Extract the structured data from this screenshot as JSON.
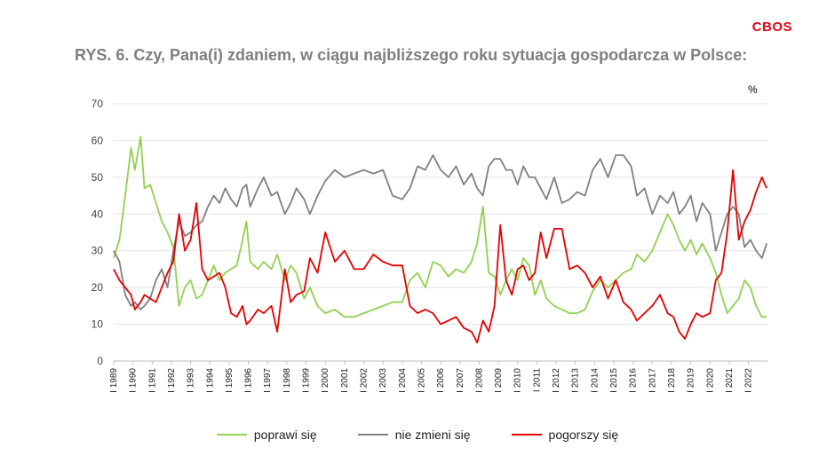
{
  "brand": "CBOS",
  "title": "RYS. 6. Czy, Pana(i) zdaniem, w ciągu najbliższego roku sytuacja gospodarcza w Polsce:",
  "unit_label": "%",
  "chart_data": {
    "type": "line",
    "title": "RYS. 6. Czy, Pana(i) zdaniem, w ciągu najbliższego roku sytuacja gospodarcza w Polsce:",
    "xlabel": "",
    "ylabel": "%",
    "ylim": [
      0,
      70
    ],
    "yticks": [
      0,
      10,
      20,
      30,
      40,
      50,
      60,
      70
    ],
    "xlim": [
      1989.0,
      2022.99
    ],
    "x_tick_labels": [
      "I 1989",
      "I 1990",
      "I 1991",
      "I 1992",
      "I 1993",
      "I 1994",
      "I 1995",
      "I 1996",
      "I 1997",
      "I 1998",
      "I 1999",
      "I 2000",
      "I 2001",
      "I 2002",
      "I 2003",
      "I 2004",
      "I 2005",
      "I 2006",
      "I 2007",
      "I 2008",
      "I 2009",
      "I 2010",
      "I 2011",
      "I 2012",
      "I 2013",
      "I 2014",
      "I 2015",
      "I 2016",
      "I 2017",
      "I 2018",
      "I 2019",
      "I 2020",
      "I 2021",
      "I 2022"
    ],
    "grid": "horizontal",
    "legend_position": "bottom",
    "series": [
      {
        "name": "poprawi się",
        "color": "#92d050",
        "x": [
          1989.0,
          1989.3,
          1989.6,
          1989.9,
          1990.1,
          1990.4,
          1990.6,
          1990.9,
          1991.2,
          1991.5,
          1991.8,
          1992.1,
          1992.4,
          1992.7,
          1993.0,
          1993.3,
          1993.6,
          1993.9,
          1994.2,
          1994.5,
          1994.8,
          1995.1,
          1995.4,
          1995.7,
          1995.9,
          1996.1,
          1996.5,
          1996.8,
          1997.2,
          1997.5,
          1997.9,
          1998.2,
          1998.5,
          1998.9,
          1999.2,
          1999.6,
          2000.0,
          2000.5,
          2001.0,
          2001.5,
          2002.0,
          2002.5,
          2003.0,
          2003.5,
          2004.0,
          2004.4,
          2004.8,
          2005.2,
          2005.6,
          2006.0,
          2006.4,
          2006.8,
          2007.2,
          2007.6,
          2007.9,
          2008.2,
          2008.5,
          2008.8,
          2009.1,
          2009.4,
          2009.7,
          2010.0,
          2010.3,
          2010.6,
          2010.9,
          2011.2,
          2011.5,
          2011.9,
          2012.3,
          2012.7,
          2013.1,
          2013.5,
          2013.9,
          2014.3,
          2014.7,
          2015.1,
          2015.5,
          2015.9,
          2016.2,
          2016.6,
          2017.0,
          2017.4,
          2017.8,
          2018.1,
          2018.4,
          2018.7,
          2019.0,
          2019.3,
          2019.6,
          2020.0,
          2020.3,
          2020.6,
          2020.9,
          2021.2,
          2021.5,
          2021.8,
          2022.1,
          2022.4,
          2022.7,
          2022.95
        ],
        "y": [
          28,
          33,
          45,
          58,
          52,
          61,
          47,
          48,
          43,
          38,
          35,
          31,
          15,
          20,
          22,
          17,
          18,
          22,
          26,
          22,
          24,
          25,
          26,
          33,
          38,
          27,
          25,
          27,
          25,
          29,
          22,
          26,
          24,
          17,
          20,
          15,
          13,
          14,
          12,
          12,
          13,
          14,
          15,
          16,
          16,
          22,
          24,
          20,
          27,
          26,
          23,
          25,
          24,
          27,
          32,
          42,
          24,
          23,
          18,
          22,
          25,
          22,
          28,
          26,
          18,
          22,
          17,
          15,
          14,
          13,
          13,
          14,
          19,
          22,
          20,
          22,
          24,
          25,
          29,
          27,
          30,
          35,
          40,
          37,
          33,
          30,
          33,
          29,
          32,
          28,
          24,
          18,
          13,
          15,
          17,
          22,
          20,
          15,
          12,
          12
        ]
      },
      {
        "name": "nie zmieni się",
        "color": "#808080",
        "x": [
          1989.0,
          1989.3,
          1989.6,
          1989.9,
          1990.1,
          1990.4,
          1990.6,
          1990.9,
          1991.2,
          1991.5,
          1991.8,
          1992.1,
          1992.4,
          1992.7,
          1993.0,
          1993.3,
          1993.6,
          1993.9,
          1994.2,
          1994.5,
          1994.8,
          1995.1,
          1995.4,
          1995.7,
          1995.9,
          1996.1,
          1996.5,
          1996.8,
          1997.2,
          1997.5,
          1997.9,
          1998.2,
          1998.5,
          1998.9,
          1999.2,
          1999.6,
          2000.0,
          2000.5,
          2001.0,
          2001.5,
          2002.0,
          2002.5,
          2003.0,
          2003.5,
          2004.0,
          2004.4,
          2004.8,
          2005.2,
          2005.6,
          2006.0,
          2006.4,
          2006.8,
          2007.2,
          2007.6,
          2007.9,
          2008.2,
          2008.5,
          2008.8,
          2009.1,
          2009.4,
          2009.7,
          2010.0,
          2010.3,
          2010.6,
          2010.9,
          2011.2,
          2011.5,
          2011.9,
          2012.3,
          2012.7,
          2013.1,
          2013.5,
          2013.9,
          2014.3,
          2014.7,
          2015.1,
          2015.5,
          2015.9,
          2016.2,
          2016.6,
          2017.0,
          2017.4,
          2017.8,
          2018.1,
          2018.4,
          2018.7,
          2019.0,
          2019.3,
          2019.6,
          2020.0,
          2020.3,
          2020.6,
          2020.9,
          2021.2,
          2021.5,
          2021.8,
          2022.1,
          2022.4,
          2022.7,
          2022.95
        ],
        "y": [
          30,
          27,
          18,
          15,
          16,
          14,
          15,
          17,
          22,
          25,
          20,
          30,
          38,
          34,
          35,
          37,
          38,
          42,
          45,
          43,
          47,
          44,
          42,
          47,
          48,
          42,
          47,
          50,
          45,
          46,
          40,
          43,
          47,
          44,
          40,
          45,
          49,
          52,
          50,
          51,
          52,
          51,
          52,
          45,
          44,
          47,
          53,
          52,
          56,
          52,
          50,
          53,
          48,
          51,
          47,
          45,
          53,
          55,
          55,
          52,
          52,
          48,
          53,
          50,
          50,
          47,
          44,
          50,
          43,
          44,
          46,
          45,
          52,
          55,
          50,
          56,
          56,
          53,
          45,
          47,
          40,
          45,
          43,
          46,
          40,
          42,
          45,
          38,
          43,
          40,
          30,
          35,
          40,
          42,
          40,
          31,
          33,
          30,
          28,
          32
        ]
      },
      {
        "name": "pogorszy się",
        "color": "#e60000",
        "x": [
          1989.0,
          1989.3,
          1989.6,
          1989.9,
          1990.1,
          1990.4,
          1990.6,
          1990.9,
          1991.2,
          1991.5,
          1991.8,
          1992.1,
          1992.4,
          1992.7,
          1993.0,
          1993.3,
          1993.6,
          1993.9,
          1994.2,
          1994.5,
          1994.8,
          1995.1,
          1995.4,
          1995.7,
          1995.9,
          1996.1,
          1996.5,
          1996.8,
          1997.2,
          1997.5,
          1997.9,
          1998.2,
          1998.5,
          1998.9,
          1999.2,
          1999.6,
          2000.0,
          2000.5,
          2001.0,
          2001.5,
          2002.0,
          2002.5,
          2003.0,
          2003.5,
          2004.0,
          2004.4,
          2004.8,
          2005.2,
          2005.6,
          2006.0,
          2006.4,
          2006.8,
          2007.2,
          2007.6,
          2007.9,
          2008.2,
          2008.5,
          2008.8,
          2009.1,
          2009.4,
          2009.7,
          2010.0,
          2010.3,
          2010.6,
          2010.9,
          2011.2,
          2011.5,
          2011.9,
          2012.3,
          2012.7,
          2013.1,
          2013.5,
          2013.9,
          2014.3,
          2014.7,
          2015.1,
          2015.5,
          2015.9,
          2016.2,
          2016.6,
          2017.0,
          2017.4,
          2017.8,
          2018.1,
          2018.4,
          2018.7,
          2019.0,
          2019.3,
          2019.6,
          2020.0,
          2020.3,
          2020.6,
          2020.9,
          2021.2,
          2021.5,
          2021.8,
          2022.1,
          2022.4,
          2022.7,
          2022.95
        ],
        "y": [
          25,
          22,
          20,
          18,
          14,
          16,
          18,
          17,
          16,
          20,
          24,
          27,
          40,
          30,
          33,
          43,
          25,
          22,
          23,
          24,
          20,
          13,
          12,
          15,
          10,
          11,
          14,
          13,
          15,
          8,
          25,
          16,
          18,
          19,
          28,
          24,
          35,
          27,
          30,
          25,
          25,
          29,
          27,
          26,
          26,
          15,
          13,
          14,
          13,
          10,
          11,
          12,
          9,
          8,
          5,
          11,
          8,
          15,
          37,
          22,
          18,
          25,
          26,
          22,
          24,
          35,
          28,
          36,
          36,
          25,
          26,
          24,
          20,
          23,
          17,
          22,
          16,
          14,
          11,
          13,
          15,
          18,
          13,
          12,
          8,
          6,
          10,
          13,
          12,
          13,
          22,
          24,
          35,
          52,
          33,
          38,
          41,
          46,
          50,
          47
        ]
      }
    ]
  }
}
